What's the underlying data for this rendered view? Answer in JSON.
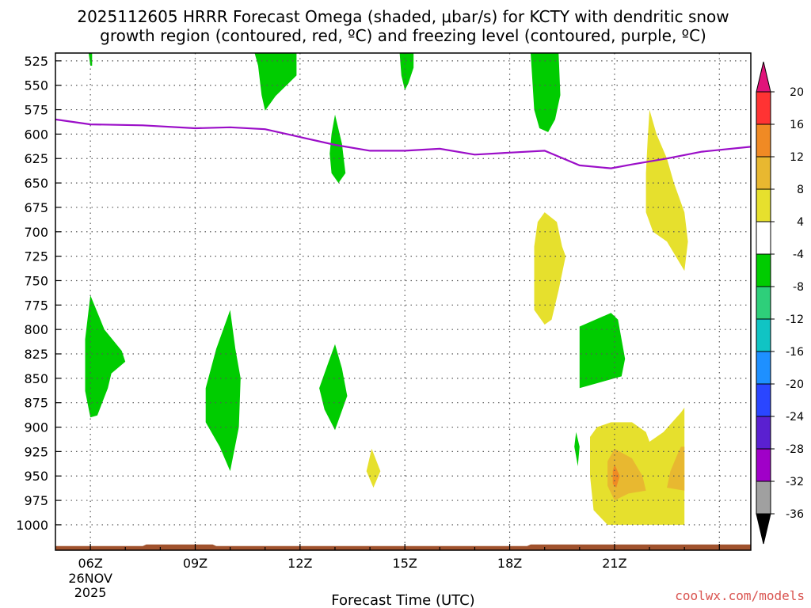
{
  "chart_data": {
    "type": "heatmap",
    "title_line1": "2025112605 HRRR Forecast Omega (shaded, μbar/s) for KCTY with dendritic snow",
    "title_line2": "growth region (contoured, red, ºC) and freezing level (contoured, purple, ºC)",
    "xlabel": "Forecast Time (UTC)",
    "credit": "coolwx.com/models",
    "x_ticks": [
      {
        "hour": 6,
        "label": "06Z"
      },
      {
        "hour": 9,
        "label": "09Z"
      },
      {
        "hour": 12,
        "label": "12Z"
      },
      {
        "hour": 15,
        "label": "15Z"
      },
      {
        "hour": 18,
        "label": "18Z"
      },
      {
        "hour": 21,
        "label": "21Z"
      }
    ],
    "date_label": [
      "26NOV",
      "2025"
    ],
    "x_range_hours": [
      5.0,
      24.9
    ],
    "y_ticks": [
      525,
      550,
      575,
      600,
      625,
      650,
      675,
      700,
      725,
      750,
      775,
      800,
      825,
      850,
      875,
      900,
      925,
      950,
      975,
      1000
    ],
    "y_range_hpa": [
      517,
      1026
    ],
    "colorbar": {
      "labels": [
        "20",
        "16",
        "12",
        "8",
        "4",
        "-4",
        "-8",
        "-12",
        "-16",
        "-20",
        "-24",
        "-28",
        "-32",
        "-36"
      ],
      "colors": [
        "#ff3333",
        "#f08a24",
        "#e8b830",
        "#e6e02d",
        "#ffffff",
        "#00cc00",
        "#2ecf7a",
        "#10c4c4",
        "#1e90ff",
        "#2a46ff",
        "#5a20d0",
        "#a000c8",
        "#a0a0a0"
      ],
      "top_triangle_color": "#e0147a",
      "bottom_triangle_color": "#000000"
    },
    "freezing_level": {
      "color": "#9b0ec8",
      "points": [
        [
          5.0,
          585
        ],
        [
          6.0,
          590
        ],
        [
          7.5,
          591
        ],
        [
          9.0,
          594
        ],
        [
          10.0,
          593
        ],
        [
          11.0,
          595
        ],
        [
          12.0,
          603
        ],
        [
          13.0,
          611
        ],
        [
          14.0,
          617
        ],
        [
          15.0,
          617
        ],
        [
          16.0,
          615
        ],
        [
          17.0,
          621
        ],
        [
          18.0,
          619
        ],
        [
          19.0,
          617
        ],
        [
          20.0,
          632
        ],
        [
          20.9,
          635
        ],
        [
          21.5,
          631
        ],
        [
          22.5,
          625
        ],
        [
          23.5,
          618
        ],
        [
          24.9,
          613
        ]
      ]
    },
    "surface_color": "#a0522d",
    "shaded_regions": [
      {
        "category": "-4 to -8",
        "color": "#00cc00",
        "points": [
          [
            5.95,
            517
          ],
          [
            6.05,
            517
          ],
          [
            6.05,
            530
          ],
          [
            6.0,
            530
          ]
        ]
      },
      {
        "category": "-4 to -8",
        "color": "#00cc00",
        "points": [
          [
            10.7,
            517
          ],
          [
            11.9,
            517
          ],
          [
            11.9,
            540
          ],
          [
            11.3,
            561
          ],
          [
            11.0,
            576
          ],
          [
            10.9,
            560
          ],
          [
            10.8,
            530
          ]
        ]
      },
      {
        "category": "-4 to -8",
        "color": "#00cc00",
        "points": [
          [
            14.85,
            517
          ],
          [
            15.25,
            517
          ],
          [
            15.25,
            532
          ],
          [
            15.1,
            548
          ],
          [
            15.0,
            555
          ],
          [
            14.9,
            540
          ]
        ]
      },
      {
        "category": "-4 to -8",
        "color": "#00cc00",
        "points": [
          [
            18.6,
            517
          ],
          [
            19.4,
            517
          ],
          [
            19.45,
            560
          ],
          [
            19.3,
            585
          ],
          [
            19.1,
            598
          ],
          [
            18.85,
            594
          ],
          [
            18.7,
            575
          ],
          [
            18.65,
            545
          ]
        ]
      },
      {
        "category": "-4 to -8",
        "color": "#00cc00",
        "points": [
          [
            13.0,
            580
          ],
          [
            13.2,
            610
          ],
          [
            13.3,
            640
          ],
          [
            13.1,
            650
          ],
          [
            12.9,
            640
          ],
          [
            12.85,
            620
          ],
          [
            12.9,
            600
          ]
        ]
      },
      {
        "category": "-4 to -8",
        "color": "#00cc00",
        "points": [
          [
            6.0,
            765
          ],
          [
            6.4,
            800
          ],
          [
            6.9,
            822
          ],
          [
            7.0,
            833
          ],
          [
            6.6,
            845
          ],
          [
            6.5,
            860
          ],
          [
            6.2,
            888
          ],
          [
            6.0,
            890
          ],
          [
            5.85,
            863
          ],
          [
            5.85,
            810
          ]
        ]
      },
      {
        "category": "-4 to -8",
        "color": "#00cc00",
        "points": [
          [
            10.0,
            780
          ],
          [
            10.15,
            820
          ],
          [
            10.3,
            850
          ],
          [
            10.25,
            900
          ],
          [
            10.0,
            945
          ],
          [
            9.7,
            920
          ],
          [
            9.3,
            895
          ],
          [
            9.3,
            860
          ],
          [
            9.6,
            820
          ]
        ]
      },
      {
        "category": "-4 to -8",
        "color": "#00cc00",
        "points": [
          [
            13.0,
            815
          ],
          [
            13.2,
            840
          ],
          [
            13.35,
            868
          ],
          [
            13.0,
            903
          ],
          [
            12.7,
            882
          ],
          [
            12.55,
            860
          ],
          [
            12.8,
            835
          ]
        ]
      },
      {
        "category": "-4 to -8",
        "color": "#00cc00",
        "points": [
          [
            20.0,
            797
          ],
          [
            20.9,
            783
          ],
          [
            21.1,
            790
          ],
          [
            21.3,
            830
          ],
          [
            21.2,
            848
          ],
          [
            20.0,
            860
          ]
        ]
      },
      {
        "category": "-4 to -8",
        "color": "#00cc00",
        "points": [
          [
            19.9,
            905
          ],
          [
            20.0,
            920
          ],
          [
            19.95,
            940
          ],
          [
            19.85,
            920
          ]
        ]
      },
      {
        "category": "4 to 8",
        "color": "#e6e02d",
        "points": [
          [
            19.0,
            680
          ],
          [
            19.35,
            690
          ],
          [
            19.5,
            715
          ],
          [
            19.6,
            725
          ],
          [
            19.4,
            760
          ],
          [
            19.2,
            790
          ],
          [
            19.0,
            795
          ],
          [
            18.7,
            780
          ],
          [
            18.7,
            715
          ],
          [
            18.8,
            690
          ]
        ]
      },
      {
        "category": "4 to 8",
        "color": "#e6e02d",
        "points": [
          [
            22.0,
            575
          ],
          [
            22.2,
            600
          ],
          [
            22.5,
            625
          ],
          [
            22.7,
            650
          ],
          [
            23.0,
            680
          ],
          [
            23.1,
            710
          ],
          [
            23.0,
            740
          ],
          [
            22.5,
            710
          ],
          [
            22.1,
            700
          ],
          [
            21.9,
            680
          ],
          [
            21.9,
            640
          ],
          [
            21.95,
            605
          ]
        ]
      },
      {
        "category": "4 to 8",
        "color": "#e6e02d",
        "points": [
          [
            14.05,
            922
          ],
          [
            14.3,
            945
          ],
          [
            14.1,
            962
          ],
          [
            13.9,
            945
          ]
        ]
      },
      {
        "category": "4 to 8",
        "color": "#e6e02d",
        "points": [
          [
            20.3,
            910
          ],
          [
            20.5,
            900
          ],
          [
            20.9,
            895
          ],
          [
            21.5,
            895
          ],
          [
            21.9,
            905
          ],
          [
            22.0,
            915
          ],
          [
            22.4,
            905
          ],
          [
            22.9,
            885
          ],
          [
            23.0,
            880
          ],
          [
            23.0,
            1000
          ],
          [
            20.8,
            1000
          ],
          [
            20.4,
            985
          ],
          [
            20.3,
            950
          ]
        ]
      },
      {
        "category": "8 to 12",
        "color": "#e8b830",
        "points": [
          [
            21.0,
            922
          ],
          [
            21.5,
            932
          ],
          [
            21.8,
            950
          ],
          [
            21.9,
            965
          ],
          [
            21.4,
            968
          ],
          [
            21.0,
            975
          ],
          [
            20.8,
            960
          ],
          [
            20.8,
            935
          ]
        ]
      },
      {
        "category": "8 to 12",
        "color": "#e8b830",
        "points": [
          [
            22.9,
            920
          ],
          [
            23.0,
            920
          ],
          [
            23.0,
            965
          ],
          [
            22.5,
            962
          ],
          [
            22.6,
            945
          ],
          [
            22.8,
            928
          ]
        ]
      },
      {
        "category": "12 to 16",
        "color": "#f08a24",
        "points": [
          [
            21.0,
            938
          ],
          [
            21.15,
            950
          ],
          [
            21.05,
            962
          ],
          [
            20.95,
            958
          ],
          [
            20.95,
            945
          ]
        ]
      }
    ]
  }
}
